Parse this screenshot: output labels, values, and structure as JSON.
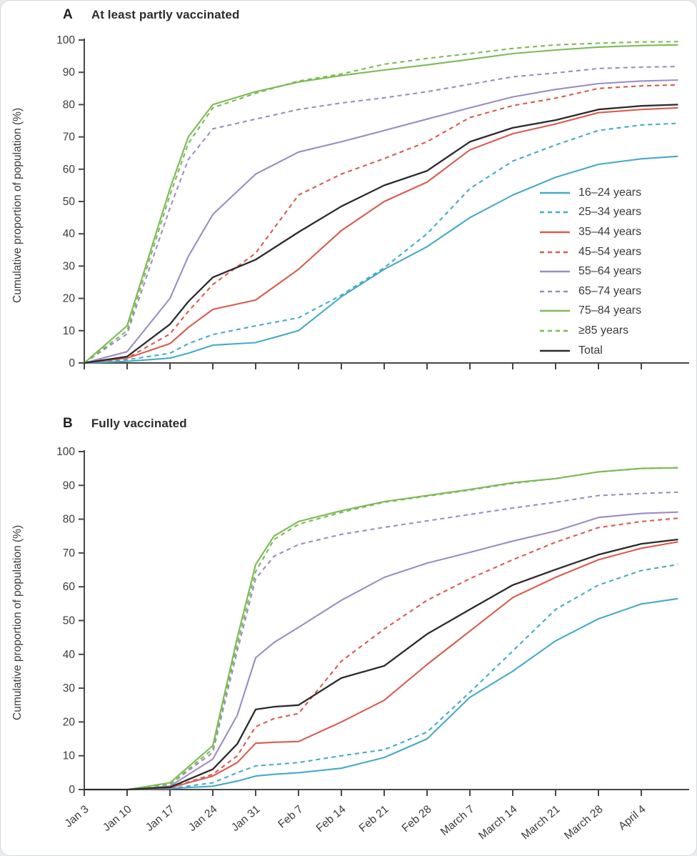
{
  "colors": {
    "axis": "#474747",
    "tick_text": "#3c3c3c",
    "blue": "#46aac8",
    "red": "#db5a4e",
    "purple": "#9b8cc3",
    "green": "#7db955",
    "black": "#2b2b2b"
  },
  "y_ticks": [
    0,
    10,
    20,
    30,
    40,
    50,
    60,
    70,
    80,
    90,
    100
  ],
  "x_ticks": {
    "days": [
      0,
      7,
      14,
      21,
      28,
      35,
      42,
      49,
      56,
      63,
      70,
      77,
      84,
      91
    ],
    "labels": [
      "Jan 3",
      "Jan 10",
      "Jan 17",
      "Jan 24",
      "Jan 31",
      "Feb 7",
      "Feb 14",
      "Feb 21",
      "Feb 28",
      "March 7",
      "March 14",
      "March 21",
      "March 28",
      "April 4"
    ]
  },
  "chart_data": [
    {
      "type": "line",
      "panel": "A",
      "title": "At least partly vaccinated",
      "ylabel": "Cumulative proportion of population (%)",
      "ylim": [
        0,
        100
      ],
      "xlim_days": [
        0,
        98
      ],
      "grid": false,
      "legend_position": "right-middle",
      "x_point_dates": [
        "Jan 3",
        "Jan 10",
        "Jan 17",
        "Jan 20",
        "Jan 24",
        "Jan 31",
        "Feb 7",
        "Feb 14",
        "Feb 21",
        "Feb 28",
        "March 7",
        "March 14",
        "March 21",
        "March 28",
        "April 4",
        "April 10"
      ],
      "x_days": [
        0,
        7,
        14,
        17,
        21,
        28,
        35,
        42,
        49,
        56,
        63,
        70,
        77,
        84,
        91,
        97
      ],
      "series": [
        {
          "name": "16–24 years",
          "color_key": "blue",
          "dashed": false,
          "values": [
            0,
            0.5,
            1.5,
            3,
            5.5,
            6.3,
            10,
            20.5,
            29,
            36,
            45,
            52,
            57.5,
            61.5,
            63.2,
            64
          ]
        },
        {
          "name": "25–34 years",
          "color_key": "blue",
          "dashed": true,
          "values": [
            0,
            1,
            3,
            6,
            8.8,
            11.5,
            14,
            21,
            29.5,
            40,
            54,
            62.5,
            67.5,
            72,
            73.7,
            74.2
          ]
        },
        {
          "name": "35–44 years",
          "color_key": "red",
          "dashed": false,
          "values": [
            0,
            1.5,
            6,
            11,
            16.6,
            19.5,
            29,
            41,
            50,
            56,
            66,
            71,
            74,
            77.5,
            78.5,
            79
          ]
        },
        {
          "name": "45–54 years",
          "color_key": "red",
          "dashed": true,
          "values": [
            0,
            1.5,
            9,
            16,
            24.3,
            34,
            52,
            58.5,
            63.3,
            68.5,
            76,
            79.7,
            82,
            85,
            85.8,
            86.1
          ]
        },
        {
          "name": "55–64 years",
          "color_key": "purple",
          "dashed": false,
          "values": [
            0,
            3.5,
            20,
            33,
            46,
            58.5,
            65.3,
            68.5,
            72,
            75.5,
            79,
            82.4,
            84.7,
            86.5,
            87.3,
            87.6
          ]
        },
        {
          "name": "65–74 years",
          "color_key": "purple",
          "dashed": true,
          "values": [
            0,
            9,
            48,
            63,
            72.5,
            75.5,
            78.5,
            80.5,
            82.1,
            84,
            86.3,
            88.6,
            89.8,
            91.2,
            91.6,
            91.8
          ]
        },
        {
          "name": "75–84 years",
          "color_key": "green",
          "dashed": false,
          "values": [
            0,
            11.5,
            54,
            70,
            80,
            84,
            87,
            89,
            90.7,
            92.3,
            94,
            95.8,
            96.9,
            97.8,
            98.3,
            98.5
          ]
        },
        {
          "name": "≥85 years",
          "color_key": "green",
          "dashed": true,
          "values": [
            0,
            10,
            52,
            68,
            79,
            83.5,
            87.3,
            89.5,
            92.5,
            94.3,
            95.8,
            97.4,
            98.5,
            99,
            99.4,
            99.5
          ]
        },
        {
          "name": "Total",
          "color_key": "black",
          "dashed": false,
          "values": [
            0,
            2,
            12,
            19,
            26.5,
            32,
            40.5,
            48.5,
            55,
            59.5,
            68.5,
            72.8,
            75.2,
            78.5,
            79.6,
            80
          ]
        }
      ]
    },
    {
      "type": "line",
      "panel": "B",
      "title": "Fully vaccinated",
      "ylabel": "Cumulative proportion of population (%)",
      "ylim": [
        0,
        100
      ],
      "xlim_days": [
        0,
        98
      ],
      "grid": false,
      "legend_position": "none",
      "x_point_dates": [
        "Jan 3",
        "Jan 10",
        "Jan 17",
        "Jan 24",
        "Jan 28",
        "Jan 31",
        "Feb 3",
        "Feb 7",
        "Feb 14",
        "Feb 21",
        "Feb 28",
        "March 7",
        "March 14",
        "March 21",
        "March 28",
        "April 4",
        "April 10"
      ],
      "x_days": [
        0,
        7,
        14,
        21,
        25,
        28,
        31,
        35,
        42,
        49,
        56,
        63,
        70,
        77,
        84,
        91,
        97
      ],
      "series": [
        {
          "name": "16–24 years",
          "color_key": "blue",
          "dashed": false,
          "values": [
            0,
            0,
            0.3,
            1,
            2.5,
            4,
            4.5,
            5,
            6.3,
            9.5,
            15,
            27.3,
            35,
            44,
            50.5,
            54.9,
            56.5
          ]
        },
        {
          "name": "25–34 years",
          "color_key": "blue",
          "dashed": true,
          "values": [
            0,
            0,
            0.3,
            2,
            5,
            7,
            7.4,
            8,
            10,
            11.8,
            17,
            28.8,
            41,
            53.3,
            60.5,
            64.8,
            66.6
          ]
        },
        {
          "name": "35–44 years",
          "color_key": "red",
          "dashed": false,
          "values": [
            0,
            0,
            0.5,
            4,
            8,
            13.7,
            14,
            14.2,
            20,
            26.4,
            37,
            46.9,
            56.8,
            62.8,
            68,
            71.4,
            73.3
          ]
        },
        {
          "name": "45–54 years",
          "color_key": "red",
          "dashed": true,
          "values": [
            0,
            0,
            0.5,
            4.5,
            10,
            18.6,
            21,
            22.5,
            38,
            47.5,
            56,
            62.4,
            68,
            73.2,
            77.5,
            79.3,
            80.3
          ]
        },
        {
          "name": "55–64 years",
          "color_key": "purple",
          "dashed": false,
          "values": [
            0,
            0,
            1,
            9,
            22,
            39,
            43.5,
            48,
            56,
            62.8,
            67,
            70.2,
            73.5,
            76.5,
            80.5,
            81.7,
            82.1
          ]
        },
        {
          "name": "65–74 years",
          "color_key": "purple",
          "dashed": true,
          "values": [
            0,
            0,
            1.5,
            11,
            41,
            62.4,
            69,
            72.5,
            75.5,
            77.6,
            79.5,
            81.4,
            83.3,
            85,
            87,
            87.6,
            88
          ]
        },
        {
          "name": "75–84 years",
          "color_key": "green",
          "dashed": false,
          "values": [
            0,
            0,
            2,
            13,
            45,
            66.6,
            75,
            79.3,
            82.5,
            85.2,
            87,
            88.8,
            90.8,
            92,
            94,
            95,
            95.2
          ]
        },
        {
          "name": "≥85 years",
          "color_key": "green",
          "dashed": true,
          "values": [
            0,
            0,
            1.5,
            12,
            43,
            64.5,
            74,
            78.5,
            82,
            85,
            86.8,
            88.6,
            90.6,
            92,
            94,
            95,
            95.2
          ]
        },
        {
          "name": "Total",
          "color_key": "black",
          "dashed": false,
          "values": [
            0,
            0,
            0.7,
            6,
            13.5,
            23.7,
            24.5,
            25,
            33,
            36.6,
            46,
            53.3,
            60.5,
            65.1,
            69.5,
            72.7,
            74
          ]
        }
      ]
    }
  ]
}
